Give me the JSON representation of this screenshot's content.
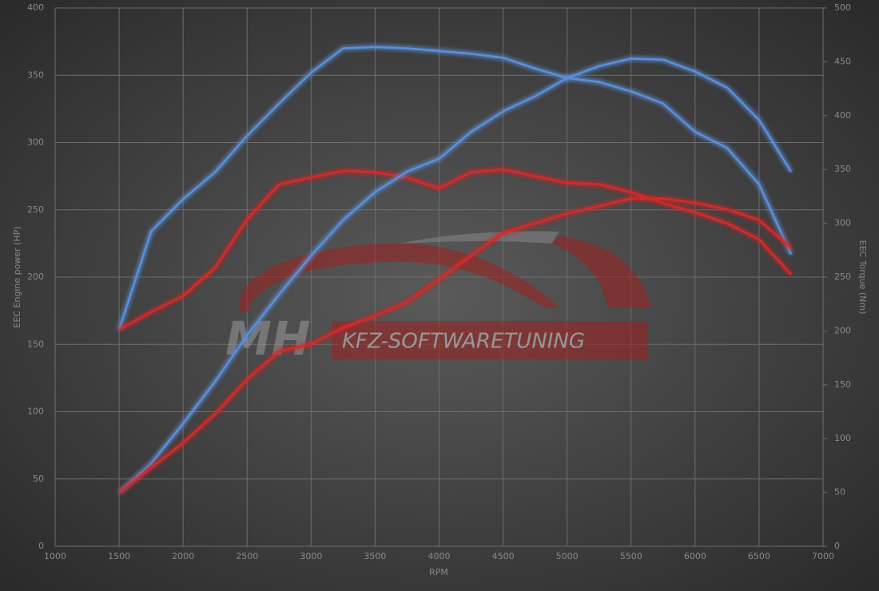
{
  "chart_data": {
    "type": "line",
    "x_label": "RPM",
    "y_label": "EEC Engine power (HP)",
    "y2_label": "EEC Torque (Nm)",
    "watermark": [
      "MH",
      "KFZ-SOFTWARETUNING"
    ],
    "x": [
      1500,
      1750,
      2000,
      2250,
      2500,
      2750,
      3000,
      3250,
      3500,
      3750,
      4000,
      4250,
      4500,
      4750,
      5000,
      5250,
      5500,
      5750,
      6000,
      6250,
      6500,
      6750
    ],
    "xlim": [
      1000,
      7000
    ],
    "xticks": [
      1000,
      1500,
      2000,
      2500,
      3000,
      3500,
      4000,
      4500,
      5000,
      5500,
      6000,
      6500,
      7000
    ],
    "ylim": [
      0,
      400
    ],
    "yticks": [
      0,
      50,
      100,
      150,
      200,
      250,
      300,
      350,
      400
    ],
    "y2lim": [
      0,
      500
    ],
    "y2ticks": [
      0,
      50,
      100,
      150,
      200,
      250,
      300,
      350,
      400,
      450,
      500
    ],
    "grid": true,
    "series": [
      {
        "color": "#5b8fd8",
        "axis": "y",
        "values": [
          161,
          234,
          258,
          278,
          305,
          329,
          352,
          370,
          371,
          370,
          368,
          366,
          363,
          355,
          348,
          345,
          338,
          329,
          308,
          296,
          269,
          217
        ]
      },
      {
        "color": "#d42a2a",
        "axis": "y",
        "values": [
          161,
          174,
          186,
          207,
          243,
          269,
          274,
          279,
          278,
          274,
          266,
          278,
          280,
          275,
          270,
          269,
          263,
          255,
          248,
          240,
          228,
          202
        ]
      },
      {
        "color": "#5b8fd8",
        "axis": "y2",
        "values": [
          50,
          77,
          114,
          153,
          196,
          234,
          270,
          303,
          329,
          348,
          360,
          385,
          404,
          418,
          435,
          446,
          453,
          452,
          441,
          426,
          396,
          348
        ]
      },
      {
        "color": "#d42a2a",
        "axis": "y2",
        "values": [
          50,
          73,
          96,
          123,
          155,
          181,
          188,
          203,
          214,
          227,
          248,
          270,
          291,
          300,
          309,
          316,
          323,
          323,
          319,
          313,
          303,
          277
        ]
      }
    ]
  }
}
